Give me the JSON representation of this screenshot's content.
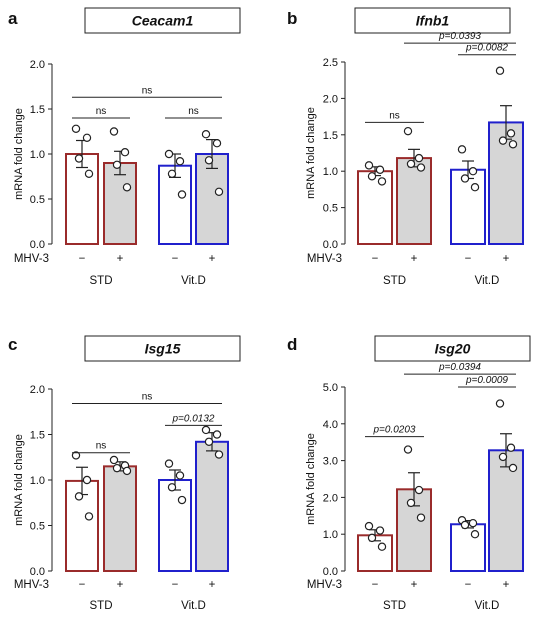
{
  "condition_label": "MHV-3",
  "minus_sign": "−",
  "plus_sign": "+",
  "colors": {
    "std": "#9a2b2b",
    "vitd": "#2020cc",
    "infected_fill": "#d6d6d6",
    "uninfected_fill": "#ffffff"
  },
  "chart_data": [
    {
      "type": "bar",
      "panel": "a",
      "title": "Ceacam1",
      "xlabel": "",
      "ylabel": "mRNA fold change",
      "ylim": [
        0,
        2.0
      ],
      "yticks": [
        "0.0",
        "0.5",
        "1.0",
        "1.5",
        "2.0"
      ],
      "groups": [
        "STD",
        "Vit.D"
      ],
      "bars": [
        {
          "group": "STD",
          "infected": false,
          "mean": 1.0,
          "sem": 0.15,
          "points": [
            1.28,
            1.18,
            0.95,
            0.78
          ]
        },
        {
          "group": "STD",
          "infected": true,
          "mean": 0.9,
          "sem": 0.13,
          "points": [
            1.25,
            1.02,
            0.88,
            0.63
          ]
        },
        {
          "group": "Vit.D",
          "infected": false,
          "mean": 0.87,
          "sem": 0.13,
          "points": [
            1.0,
            0.92,
            0.78,
            0.55
          ]
        },
        {
          "group": "Vit.D",
          "infected": true,
          "mean": 1.0,
          "sem": 0.16,
          "points": [
            1.22,
            1.12,
            0.93,
            0.58
          ]
        }
      ],
      "comparisons": [
        {
          "from": 0,
          "to": 1,
          "label": "ns",
          "y": 1.4
        },
        {
          "from": 2,
          "to": 3,
          "label": "ns",
          "y": 1.4
        },
        {
          "from": 0,
          "to": 3,
          "label": "ns",
          "y": 1.63
        }
      ]
    },
    {
      "type": "bar",
      "panel": "b",
      "title": "Ifnb1",
      "xlabel": "",
      "ylabel": "mRNA fold change",
      "ylim": [
        0,
        2.5
      ],
      "yticks": [
        "0.0",
        "0.5",
        "1.0",
        "1.5",
        "2.0",
        "2.5"
      ],
      "groups": [
        "STD",
        "Vit.D"
      ],
      "bars": [
        {
          "group": "STD",
          "infected": false,
          "mean": 1.0,
          "sem": 0.06,
          "points": [
            1.08,
            1.02,
            0.93,
            0.86
          ]
        },
        {
          "group": "STD",
          "infected": true,
          "mean": 1.18,
          "sem": 0.12,
          "points": [
            1.55,
            1.18,
            1.1,
            1.05
          ]
        },
        {
          "group": "Vit.D",
          "infected": false,
          "mean": 1.02,
          "sem": 0.12,
          "points": [
            1.3,
            1.0,
            0.9,
            0.78
          ]
        },
        {
          "group": "Vit.D",
          "infected": true,
          "mean": 1.67,
          "sem": 0.23,
          "points": [
            2.38,
            1.52,
            1.42,
            1.37
          ]
        }
      ],
      "comparisons": [
        {
          "from": 0,
          "to": 1,
          "label": "ns",
          "y": 1.67
        },
        {
          "from": 2,
          "to": 3,
          "label": "p=0.0082",
          "y": 2.6
        },
        {
          "from": 1,
          "to": 3,
          "label": "p=0.0393",
          "y": 2.76
        }
      ]
    },
    {
      "type": "bar",
      "panel": "c",
      "title": "Isg15",
      "xlabel": "",
      "ylabel": "mRNA fold change",
      "ylim": [
        0,
        2.0
      ],
      "yticks": [
        "0.0",
        "0.5",
        "1.0",
        "1.5",
        "2.0"
      ],
      "groups": [
        "STD",
        "Vit.D"
      ],
      "bars": [
        {
          "group": "STD",
          "infected": false,
          "mean": 0.99,
          "sem": 0.15,
          "points": [
            1.27,
            1.0,
            0.82,
            0.6
          ]
        },
        {
          "group": "STD",
          "infected": true,
          "mean": 1.15,
          "sem": 0.05,
          "points": [
            1.22,
            1.16,
            1.13,
            1.1
          ]
        },
        {
          "group": "Vit.D",
          "infected": false,
          "mean": 1.0,
          "sem": 0.11,
          "points": [
            1.18,
            1.05,
            0.92,
            0.78
          ]
        },
        {
          "group": "Vit.D",
          "infected": true,
          "mean": 1.42,
          "sem": 0.1,
          "points": [
            1.55,
            1.5,
            1.42,
            1.28
          ]
        }
      ],
      "comparisons": [
        {
          "from": 0,
          "to": 1,
          "label": "ns",
          "y": 1.3
        },
        {
          "from": 2,
          "to": 3,
          "label": "p=0.0132",
          "y": 1.6
        },
        {
          "from": 0,
          "to": 3,
          "label": "ns",
          "y": 1.84
        }
      ]
    },
    {
      "type": "bar",
      "panel": "d",
      "title": "Isg20",
      "xlabel": "",
      "ylabel": "mRNA fold change",
      "ylim": [
        0,
        5.0
      ],
      "yticks": [
        "0.0",
        "1.0",
        "2.0",
        "3.0",
        "4.0",
        "5.0"
      ],
      "groups": [
        "STD",
        "Vit.D"
      ],
      "bars": [
        {
          "group": "STD",
          "infected": false,
          "mean": 0.97,
          "sem": 0.15,
          "points": [
            1.22,
            1.1,
            0.9,
            0.66
          ]
        },
        {
          "group": "STD",
          "infected": true,
          "mean": 2.22,
          "sem": 0.45,
          "points": [
            3.3,
            2.2,
            1.85,
            1.45
          ]
        },
        {
          "group": "Vit.D",
          "infected": false,
          "mean": 1.27,
          "sem": 0.1,
          "points": [
            1.38,
            1.3,
            1.25,
            1.0
          ]
        },
        {
          "group": "Vit.D",
          "infected": true,
          "mean": 3.28,
          "sem": 0.45,
          "points": [
            4.55,
            3.35,
            3.1,
            2.8
          ]
        }
      ],
      "comparisons": [
        {
          "from": 0,
          "to": 1,
          "label": "p=0.0203",
          "y": 3.65
        },
        {
          "from": 2,
          "to": 3,
          "label": "p=0.0009",
          "y": 5.0
        },
        {
          "from": 1,
          "to": 3,
          "label": "p=0.0394",
          "y": 5.35
        }
      ]
    }
  ]
}
